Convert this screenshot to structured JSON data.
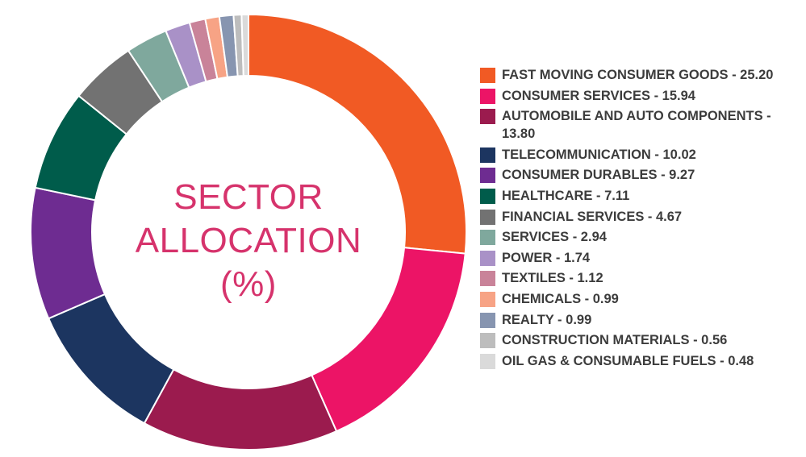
{
  "chart_data": {
    "type": "pie",
    "title": "SECTOR ALLOCATION (%)",
    "title_lines": [
      "SECTOR",
      "ALLOCATION",
      "(%)"
    ],
    "legend_position": "right",
    "donut": true,
    "slices": [
      {
        "label": "FAST MOVING CONSUMER GOODS - 25.20",
        "value": 25.2,
        "color": "#f15a24"
      },
      {
        "label": "CONSUMER SERVICES - 15.94",
        "value": 15.94,
        "color": "#ec1466"
      },
      {
        "label": "AUTOMOBILE AND AUTO COMPONENTS - 13.80",
        "value": 13.8,
        "color": "#9b1b4e"
      },
      {
        "label": "TELECOMMUNICATION - 10.02",
        "value": 10.02,
        "color": "#1c3560"
      },
      {
        "label": "CONSUMER DURABLES - 9.27",
        "value": 9.27,
        "color": "#6e2c91"
      },
      {
        "label": "HEALTHCARE - 7.11",
        "value": 7.11,
        "color": "#005c4b"
      },
      {
        "label": "FINANCIAL SERVICES - 4.67",
        "value": 4.67,
        "color": "#727272"
      },
      {
        "label": "SERVICES - 2.94",
        "value": 2.94,
        "color": "#7fa89d"
      },
      {
        "label": "POWER - 1.74",
        "value": 1.74,
        "color": "#a991c7"
      },
      {
        "label": "TEXTILES - 1.12",
        "value": 1.12,
        "color": "#c98399"
      },
      {
        "label": "CHEMICALS - 0.99",
        "value": 0.99,
        "color": "#f7a385"
      },
      {
        "label": "REALTY - 0.99",
        "value": 0.99,
        "color": "#8795b0"
      },
      {
        "label": "CONSTRUCTION MATERIALS - 0.56",
        "value": 0.56,
        "color": "#bdbdbd"
      },
      {
        "label": "OIL GAS & CONSUMABLE FUELS - 0.48",
        "value": 0.48,
        "color": "#dadada"
      }
    ]
  }
}
